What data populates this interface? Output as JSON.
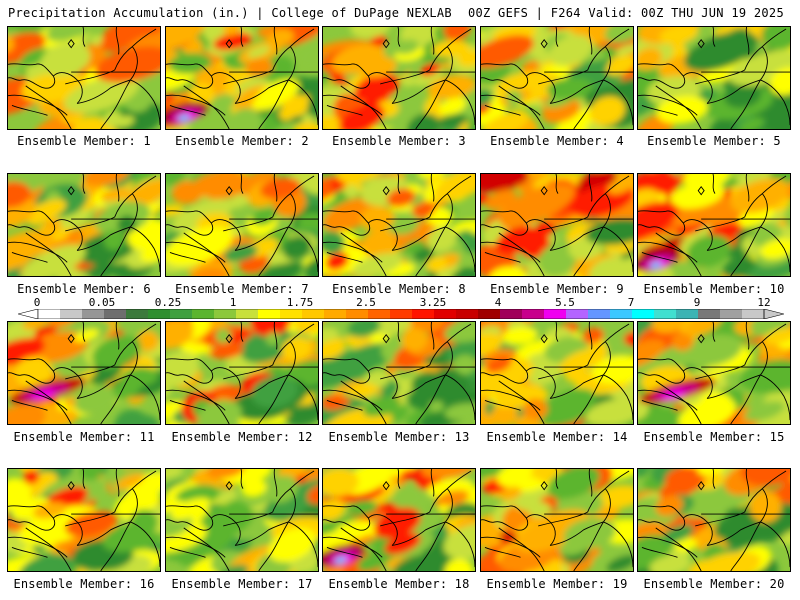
{
  "header": {
    "left": "Precipitation Accumulation (in.) | College of DuPage NEXLAB",
    "right": "00Z GEFS | F264 Valid: 00Z THU JUN 19 2025"
  },
  "panels": [
    {
      "label": "Ensemble Member: 1",
      "intensity": 0.4,
      "seed": 11
    },
    {
      "label": "Ensemble Member: 2",
      "intensity": 0.55,
      "seed": 23,
      "hotspot": "southwest"
    },
    {
      "label": "Ensemble Member: 3",
      "intensity": 0.55,
      "seed": 37
    },
    {
      "label": "Ensemble Member: 4",
      "intensity": 0.45,
      "seed": 41
    },
    {
      "label": "Ensemble Member: 5",
      "intensity": 0.3,
      "seed": 53
    },
    {
      "label": "Ensemble Member: 6",
      "intensity": 0.3,
      "seed": 61
    },
    {
      "label": "Ensemble Member: 7",
      "intensity": 0.4,
      "seed": 71
    },
    {
      "label": "Ensemble Member: 8",
      "intensity": 0.5,
      "seed": 83
    },
    {
      "label": "Ensemble Member: 9",
      "intensity": 0.6,
      "seed": 97
    },
    {
      "label": "Ensemble Member: 10",
      "intensity": 0.6,
      "seed": 101,
      "hotspot": "southwest"
    },
    {
      "label": "Ensemble Member: 11",
      "intensity": 0.55,
      "seed": 113,
      "hotspot": "west"
    },
    {
      "label": "Ensemble Member: 12",
      "intensity": 0.45,
      "seed": 127
    },
    {
      "label": "Ensemble Member: 13",
      "intensity": 0.3,
      "seed": 131
    },
    {
      "label": "Ensemble Member: 14",
      "intensity": 0.45,
      "seed": 149
    },
    {
      "label": "Ensemble Member: 15",
      "intensity": 0.5,
      "seed": 157,
      "hotspot": "west"
    },
    {
      "label": "Ensemble Member: 16",
      "intensity": 0.4,
      "seed": 163
    },
    {
      "label": "Ensemble Member: 17",
      "intensity": 0.4,
      "seed": 173
    },
    {
      "label": "Ensemble Member: 18",
      "intensity": 0.55,
      "seed": 181,
      "hotspot": "southwest"
    },
    {
      "label": "Ensemble Member: 19",
      "intensity": 0.55,
      "seed": 191
    },
    {
      "label": "Ensemble Member: 20",
      "intensity": 0.3,
      "seed": 197
    }
  ],
  "colorbar": {
    "ticks": [
      "0",
      "0.05",
      "0.25",
      "1",
      "1.75",
      "2.5",
      "3.25",
      "4",
      "5.5",
      "7",
      "9",
      "12"
    ],
    "colors": [
      "#ffffff",
      "#c8c8c8",
      "#969696",
      "#6e6e6e",
      "#3c7a3c",
      "#2f8f2f",
      "#3fa03f",
      "#5bb52f",
      "#8cc83c",
      "#c8e03c",
      "#ffff00",
      "#ffe100",
      "#ffc800",
      "#ffaa00",
      "#ff8c00",
      "#ff6400",
      "#ff3c00",
      "#ff1400",
      "#e10000",
      "#c80000",
      "#a00000",
      "#a0005a",
      "#c8008c",
      "#f000f0",
      "#b464ff",
      "#6496ff",
      "#3cc8ff",
      "#00ffff",
      "#40e0d0",
      "#3cb4b4",
      "#787878",
      "#a0a0a0",
      "#c8c8c8"
    ]
  }
}
